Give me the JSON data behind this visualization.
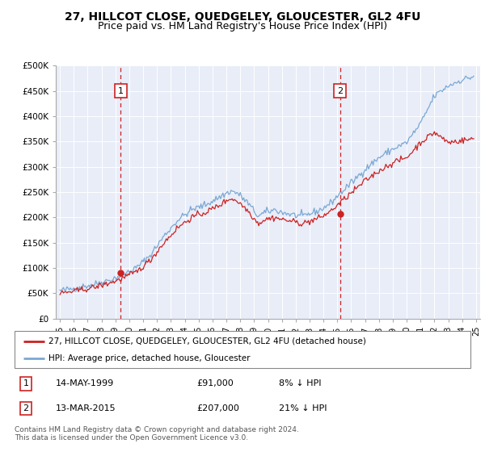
{
  "title": "27, HILLCOT CLOSE, QUEDGELEY, GLOUCESTER, GL2 4FU",
  "subtitle": "Price paid vs. HM Land Registry's House Price Index (HPI)",
  "title_fontsize": 10,
  "subtitle_fontsize": 9,
  "background_color": "#e8edf8",
  "ylim": [
    0,
    500000
  ],
  "yticks": [
    0,
    50000,
    100000,
    150000,
    200000,
    250000,
    300000,
    350000,
    400000,
    450000,
    500000
  ],
  "ytick_labels": [
    "£0",
    "£50K",
    "£100K",
    "£150K",
    "£200K",
    "£250K",
    "£300K",
    "£350K",
    "£400K",
    "£450K",
    "£500K"
  ],
  "hpi_color": "#7aa8d4",
  "price_color": "#cc2222",
  "marker1_x": 1999.37,
  "marker1_value": 91000,
  "marker2_x": 2015.2,
  "marker2_value": 207000,
  "legend_line1": "27, HILLCOT CLOSE, QUEDGELEY, GLOUCESTER, GL2 4FU (detached house)",
  "legend_line2": "HPI: Average price, detached house, Gloucester",
  "table_row1": [
    "1",
    "14-MAY-1999",
    "£91,000",
    "8% ↓ HPI"
  ],
  "table_row2": [
    "2",
    "13-MAR-2015",
    "£207,000",
    "21% ↓ HPI"
  ],
  "footnote": "Contains HM Land Registry data © Crown copyright and database right 2024.\nThis data is licensed under the Open Government Licence v3.0.",
  "xstart_year": 1995.0,
  "xend_year": 2025.0
}
